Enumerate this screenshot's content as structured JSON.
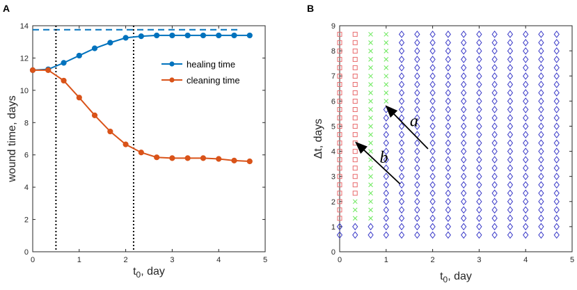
{
  "panel_labels": [
    "A",
    "B"
  ],
  "colors": {
    "healing": "#0072BD",
    "cleaning": "#D95319",
    "marker_square": "#E8696B",
    "marker_cross": "#6AE85A",
    "marker_diamond": "#3A3AC8",
    "axis": "#262626"
  },
  "chart_data": [
    {
      "type": "line",
      "panel": "A",
      "xlabel_main": "t",
      "xlabel_sub": "0",
      "xlabel_rest": ", day",
      "ylabel": "wound time, days",
      "xlim": [
        0,
        5
      ],
      "ylim": [
        0,
        14
      ],
      "xticks": [
        "0",
        "1",
        "2",
        "3",
        "4",
        "5"
      ],
      "yticks": [
        "0",
        "2",
        "4",
        "6",
        "8",
        "10",
        "12",
        "14"
      ],
      "x": [
        0,
        0.333,
        0.667,
        1,
        1.333,
        1.667,
        2,
        2.333,
        2.667,
        3,
        3.333,
        3.667,
        4,
        4.333,
        4.667
      ],
      "series": [
        {
          "name": "healing time",
          "values": [
            11.25,
            11.3,
            11.7,
            12.15,
            12.6,
            12.95,
            13.25,
            13.35,
            13.4,
            13.4,
            13.4,
            13.4,
            13.4,
            13.4,
            13.4
          ]
        },
        {
          "name": "cleaning time",
          "values": [
            11.25,
            11.25,
            10.6,
            9.55,
            8.45,
            7.45,
            6.65,
            6.15,
            5.85,
            5.8,
            5.8,
            5.8,
            5.75,
            5.65,
            5.6
          ]
        }
      ],
      "asymptote": {
        "y": 13.75,
        "xrange": [
          0,
          4.45
        ]
      },
      "vlines": [
        0.5,
        2.17
      ],
      "legend_position": "center-right"
    },
    {
      "type": "scatter",
      "panel": "B",
      "xlabel_main": "t",
      "xlabel_sub": "0",
      "xlabel_rest": ", day",
      "ylabel_prefix": "Δt",
      "ylabel_rest": ", days",
      "xlim": [
        0,
        5
      ],
      "ylim": [
        0,
        9
      ],
      "xticks": [
        "0",
        "1",
        "2",
        "3",
        "4",
        "5"
      ],
      "yticks": [
        "0",
        "1",
        "2",
        "3",
        "4",
        "5",
        "6",
        "7",
        "8",
        "9"
      ],
      "x": [
        0,
        0.333,
        0.667,
        1,
        1.333,
        1.667,
        2,
        2.333,
        2.667,
        3,
        3.333,
        3.667,
        4,
        4.333,
        4.667
      ],
      "y_start": 0.667,
      "y_end": 8.667,
      "y_step": 0.333,
      "regions": [
        {
          "label": "square",
          "x_index": [
            0
          ],
          "y_max": 8.667,
          "below": "diamond",
          "below_y_max": 1.0
        },
        {
          "label": "square",
          "x_index": [
            1
          ],
          "y_max": 8.667,
          "below": "diamond",
          "below_y_max": 1.0,
          "cross_y_max": 2.0
        },
        {
          "label": "cross",
          "x_index": [
            2
          ],
          "y_max": 8.667,
          "below": "diamond",
          "below_y_max": 1.0
        },
        {
          "label": "cross",
          "x_index": [
            3
          ],
          "y_max": 8.667,
          "below": "diamond",
          "below_y_max": 5.667
        }
      ],
      "annotations": [
        {
          "text": "a",
          "from": [
            1.9,
            4.1
          ],
          "to": [
            1.0,
            5.8
          ],
          "label_at": [
            1.6,
            5.0
          ]
        },
        {
          "text": "b",
          "from": [
            1.3,
            2.7
          ],
          "to": [
            0.35,
            4.35
          ],
          "label_at": [
            0.95,
            3.55
          ]
        }
      ]
    }
  ]
}
